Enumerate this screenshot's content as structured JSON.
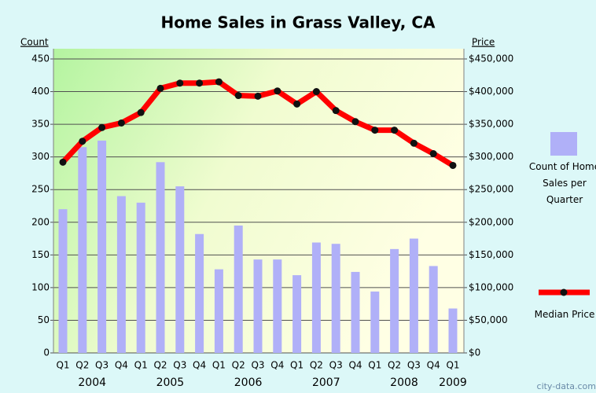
{
  "chart_data": {
    "type": "combo",
    "title": "Home Sales in Grass Valley, CA",
    "y_label": "Count",
    "y2_label": "Price",
    "categories": [
      "Q1",
      "Q2",
      "Q3",
      "Q4",
      "Q1",
      "Q2",
      "Q3",
      "Q4",
      "Q1",
      "Q2",
      "Q3",
      "Q4",
      "Q1",
      "Q2",
      "Q3",
      "Q4",
      "Q1",
      "Q2",
      "Q3",
      "Q4",
      "Q1"
    ],
    "years": [
      "2004",
      "2005",
      "2006",
      "2007",
      "2008",
      "2009"
    ],
    "series": [
      {
        "name": "Count of Home Sales per Quarter",
        "type": "bar",
        "color": "#b0b0f8",
        "values": [
          220,
          315,
          325,
          240,
          230,
          292,
          255,
          182,
          128,
          195,
          143,
          143,
          119,
          169,
          167,
          124,
          94,
          159,
          175,
          133,
          68
        ]
      },
      {
        "name": "Median Price",
        "type": "line",
        "axis": "y2",
        "color": "#ff0000",
        "marker_color": "#111111",
        "values": [
          292000,
          324000,
          345000,
          352000,
          368000,
          405000,
          413000,
          413000,
          415000,
          394000,
          393000,
          401000,
          381000,
          400000,
          371000,
          354000,
          341000,
          341000,
          321000,
          305000,
          287000
        ]
      }
    ],
    "ylim": [
      0,
      450
    ],
    "yticks": [
      0,
      50,
      100,
      150,
      200,
      250,
      300,
      350,
      400,
      450
    ],
    "y2lim": [
      0,
      450000
    ],
    "y2ticks": [
      {
        "value": 0,
        "label": "$0"
      },
      {
        "value": 50000,
        "label": "$50,000"
      },
      {
        "value": 100000,
        "label": "$100,000"
      },
      {
        "value": 150000,
        "label": "$150,000"
      },
      {
        "value": 200000,
        "label": "$200,000"
      },
      {
        "value": 250000,
        "label": "$250,000"
      },
      {
        "value": 300000,
        "label": "$300,000"
      },
      {
        "value": 350000,
        "label": "$350,000"
      },
      {
        "value": 400000,
        "label": "$400,000"
      },
      {
        "value": 450000,
        "label": "$450,000"
      }
    ],
    "grid": true,
    "watermark": "city-data.com"
  }
}
